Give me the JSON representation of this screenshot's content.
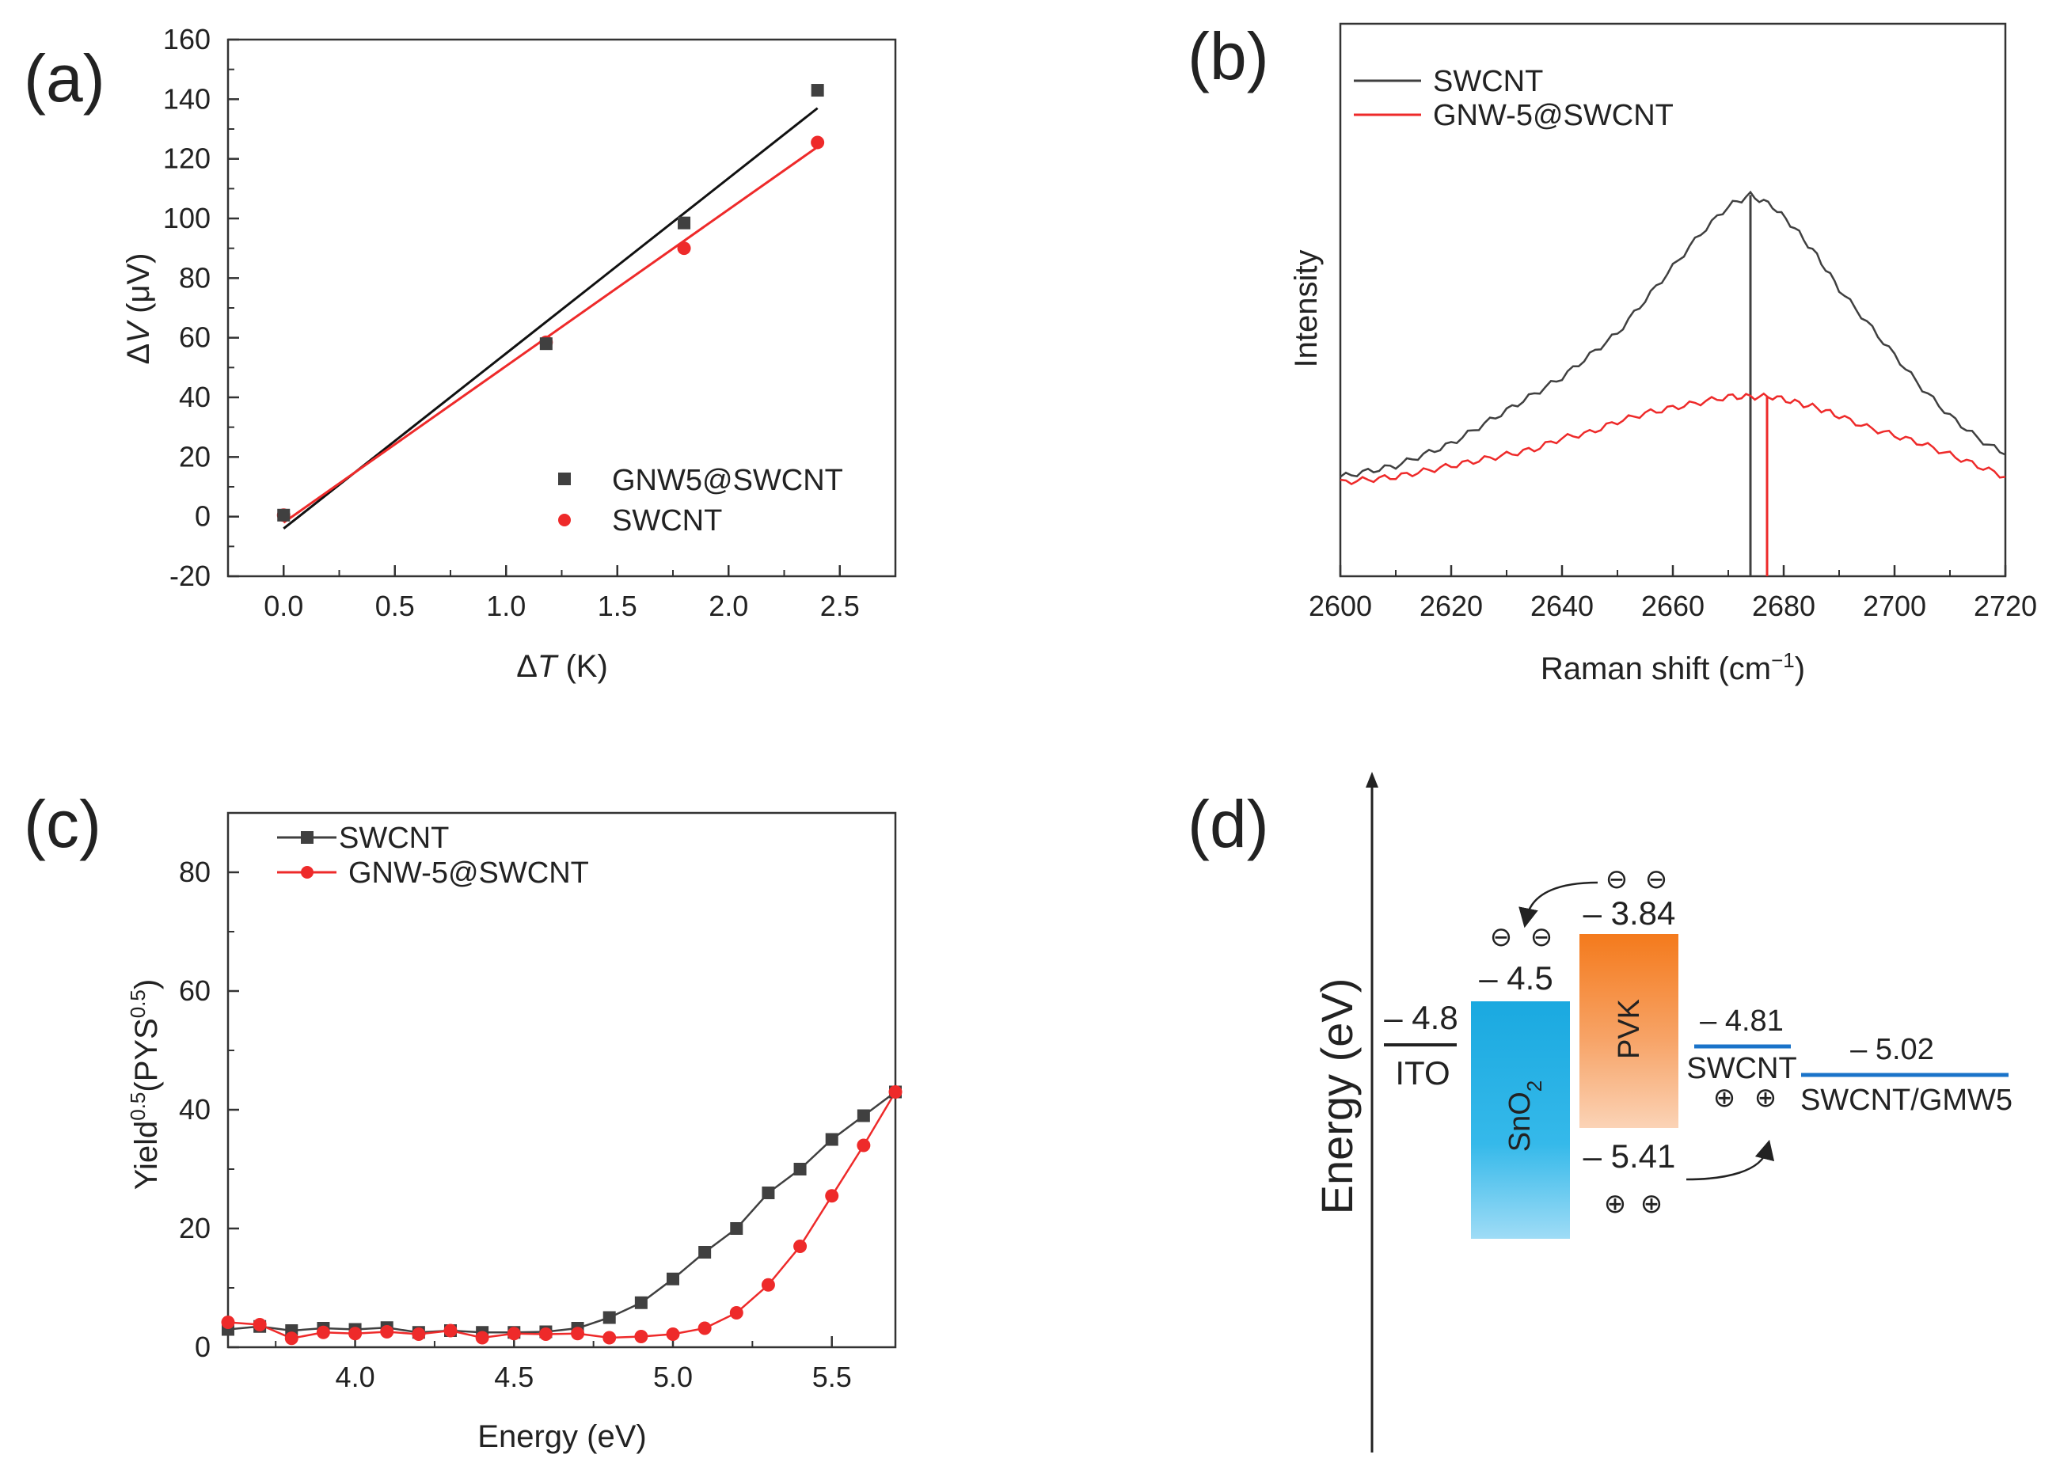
{
  "panels": {
    "a": "(a)",
    "b": "(b)",
    "c": "(c)",
    "d": "(d)"
  },
  "colors": {
    "black_series": "#404040",
    "red_series": "#ee2a2a",
    "sno2": "#1aa9e0",
    "pvk": "#f47a1c",
    "swcnt_line": "#1a73c9"
  },
  "chart_data": [
    {
      "id": "a",
      "type": "scatter",
      "title": "",
      "xlabel_symbol": "Δ",
      "xlabel_var": "T",
      "xlabel_unit": " (K)",
      "ylabel_symbol": "Δ",
      "ylabel_var": "V",
      "ylabel_unit": " (μV)",
      "xlim": [
        -0.25,
        2.75
      ],
      "ylim": [
        -20,
        160
      ],
      "xticks": [
        0.0,
        0.5,
        1.0,
        1.5,
        2.0,
        2.5
      ],
      "xtick_labels": [
        "0.0",
        "0.5",
        "1.0",
        "1.5",
        "2.0",
        "2.5"
      ],
      "yticks": [
        -20,
        0,
        20,
        40,
        60,
        80,
        100,
        120,
        140,
        160
      ],
      "ytick_labels": [
        "-20",
        "0",
        "20",
        "40",
        "60",
        "80",
        "100",
        "120",
        "140",
        "160"
      ],
      "legend_position": "bottom-right",
      "series": [
        {
          "name": "GNW5@SWCNT",
          "color": "#404040",
          "marker": "square",
          "x": [
            0.0,
            1.18,
            1.8,
            2.4
          ],
          "y": [
            0.5,
            58,
            98.5,
            143
          ],
          "fit": {
            "x": [
              0.0,
              2.4
            ],
            "y": [
              -4,
              137
            ]
          }
        },
        {
          "name": "SWCNT",
          "color": "#ee2a2a",
          "marker": "circle",
          "x": [
            0.0,
            1.18,
            1.8,
            2.4
          ],
          "y": [
            0.5,
            58.5,
            90,
            125.5
          ],
          "fit": {
            "x": [
              0.0,
              2.4
            ],
            "y": [
              -2,
              124
            ]
          }
        }
      ]
    },
    {
      "id": "b",
      "type": "line",
      "xlabel_main": "Raman shift (cm",
      "xlabel_sup": "−1",
      "xlabel_end": ")",
      "ylabel": "Intensity",
      "xlim": [
        2600,
        2720
      ],
      "ylim": [
        0,
        100
      ],
      "xticks": [
        2600,
        2620,
        2640,
        2660,
        2680,
        2700,
        2720
      ],
      "xtick_labels": [
        "2600",
        "2620",
        "2640",
        "2660",
        "2680",
        "2700",
        "2720"
      ],
      "legend_position": "top-left",
      "series": [
        {
          "name": "SWCNT",
          "color": "#404040",
          "x": [
            2600,
            2605,
            2610,
            2615,
            2620,
            2625,
            2630,
            2635,
            2640,
            2645,
            2650,
            2655,
            2660,
            2665,
            2670,
            2674,
            2678,
            2682,
            2686,
            2690,
            2695,
            2700,
            2705,
            2710,
            2715,
            2720
          ],
          "y": [
            18,
            19,
            20,
            22,
            24,
            27,
            30,
            33,
            36,
            40,
            44,
            50,
            56,
            62,
            67,
            69,
            67,
            63,
            58,
            52,
            46,
            40,
            34,
            29,
            25,
            22
          ],
          "peak": 2674
        },
        {
          "name": "GNW-5@SWCNT",
          "color": "#ee2a2a",
          "x": [
            2600,
            2605,
            2610,
            2615,
            2620,
            2625,
            2630,
            2635,
            2640,
            2645,
            2650,
            2655,
            2660,
            2665,
            2670,
            2674,
            2678,
            2682,
            2686,
            2690,
            2695,
            2700,
            2705,
            2710,
            2715,
            2720
          ],
          "y": [
            17,
            17.5,
            18,
            19,
            20,
            21,
            22,
            23,
            25,
            26,
            28,
            29.5,
            30.5,
            31.5,
            32.5,
            32.5,
            32.5,
            31.5,
            30.5,
            29,
            27,
            25.5,
            24,
            22,
            20,
            18
          ],
          "peak": 2677
        }
      ]
    },
    {
      "id": "c",
      "type": "line",
      "xlabel": "Energy (eV)",
      "ylabel_main": "Yield",
      "ylabel_sup1": "0.5",
      "ylabel_mid": "(PYS",
      "ylabel_sup2": "0.5",
      "ylabel_end": ")",
      "xlim": [
        3.6,
        5.7
      ],
      "ylim": [
        0,
        90
      ],
      "xticks": [
        4.0,
        4.5,
        5.0,
        5.5
      ],
      "xtick_labels": [
        "4.0",
        "4.5",
        "5.0",
        "5.5"
      ],
      "yticks": [
        0,
        20,
        40,
        60,
        80
      ],
      "ytick_labels": [
        "0",
        "20",
        "40",
        "60",
        "80"
      ],
      "legend_position": "top-left",
      "series": [
        {
          "name": "SWCNT",
          "color": "#404040",
          "marker": "square",
          "x": [
            3.6,
            3.7,
            3.8,
            3.9,
            4.0,
            4.1,
            4.2,
            4.3,
            4.4,
            4.5,
            4.6,
            4.7,
            4.8,
            4.9,
            5.0,
            5.1,
            5.2,
            5.3,
            5.4,
            5.5,
            5.6,
            5.7
          ],
          "y": [
            3,
            3.5,
            2.8,
            3.2,
            3.0,
            3.3,
            2.5,
            2.8,
            2.5,
            2.5,
            2.6,
            3.2,
            5,
            7.5,
            11.5,
            16,
            20,
            26,
            30,
            35,
            39,
            43
          ]
        },
        {
          "name": "GNW-5@SWCNT",
          "color": "#ee2a2a",
          "marker": "circle",
          "x": [
            3.6,
            3.7,
            3.8,
            3.9,
            4.0,
            4.1,
            4.2,
            4.3,
            4.4,
            4.5,
            4.6,
            4.7,
            4.8,
            4.9,
            5.0,
            5.1,
            5.2,
            5.3,
            5.4,
            5.5,
            5.6,
            5.7
          ],
          "y": [
            4.2,
            3.8,
            1.5,
            2.5,
            2.3,
            2.6,
            2.2,
            2.8,
            1.6,
            2.3,
            2.2,
            2.3,
            1.6,
            1.8,
            2.2,
            3.2,
            5.8,
            10.5,
            17,
            25.5,
            34,
            43
          ]
        }
      ]
    }
  ],
  "diagram": {
    "ylabel": "Energy (eV)",
    "ito": {
      "value": "– 4.8",
      "label": "ITO"
    },
    "sno2": {
      "label_main": "SnO",
      "label_sub": "2",
      "value": "– 4.5"
    },
    "pvk": {
      "label": "PVK",
      "top_value": "– 3.84",
      "bottom_value": "– 5.41"
    },
    "swcnt": {
      "value": "– 4.81",
      "label": "SWCNT"
    },
    "swcnt_gmw": {
      "value": "– 5.02",
      "label": "SWCNT/GMW5"
    },
    "electron_symbol": "⊖",
    "hole_symbol": "⊕"
  }
}
